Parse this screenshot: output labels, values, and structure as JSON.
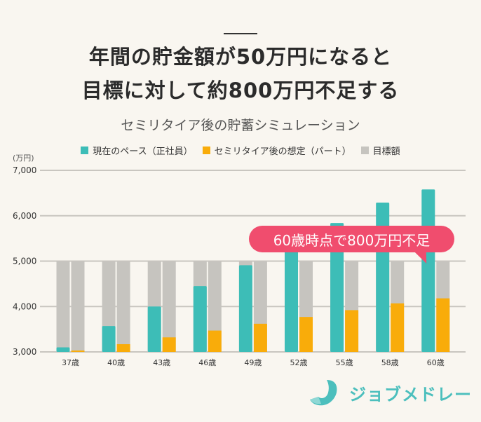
{
  "title": {
    "line1": "年間の貯金額が50万円になると",
    "line2": "目標に対して約800万円不足する"
  },
  "chart_data": {
    "type": "bar",
    "title": "セミリタイア後の貯蓄シミュレーション",
    "ylabel": "(万円)",
    "xlabel": "",
    "ylim": [
      3000,
      7000
    ],
    "yticks": [
      3000,
      4000,
      5000,
      6000,
      7000
    ],
    "ytick_labels": [
      "3,000",
      "4,000",
      "5,000",
      "6,000",
      "7,000"
    ],
    "grid": true,
    "legend_position": "top",
    "categories": [
      "37歳",
      "40歳",
      "43歳",
      "46歳",
      "49歳",
      "52歳",
      "55歳",
      "58歳",
      "60歳"
    ],
    "series": [
      {
        "name": "現在のペース（正社員）",
        "color": "#3dbdb7",
        "values": [
          3100,
          3570,
          4000,
          4450,
          4910,
          5380,
          5840,
          6290,
          6580
        ]
      },
      {
        "name": "セミリタイア後の想定（パート）",
        "color": "#f9ac0a",
        "values": [
          3030,
          3170,
          3320,
          3470,
          3620,
          3770,
          3920,
          4070,
          4180
        ]
      },
      {
        "name": "目標額",
        "color": "#c6c4bf",
        "values": [
          5000,
          5000,
          5000,
          5000,
          5000,
          5000,
          5000,
          5000,
          5000
        ]
      }
    ],
    "annotation": "60歳時点で800万円不足"
  },
  "brand": {
    "name": "ジョブメドレー",
    "color": "#4cbfbd"
  },
  "colors": {
    "background": "#f9f6f0",
    "callout": "#f04d6e"
  }
}
